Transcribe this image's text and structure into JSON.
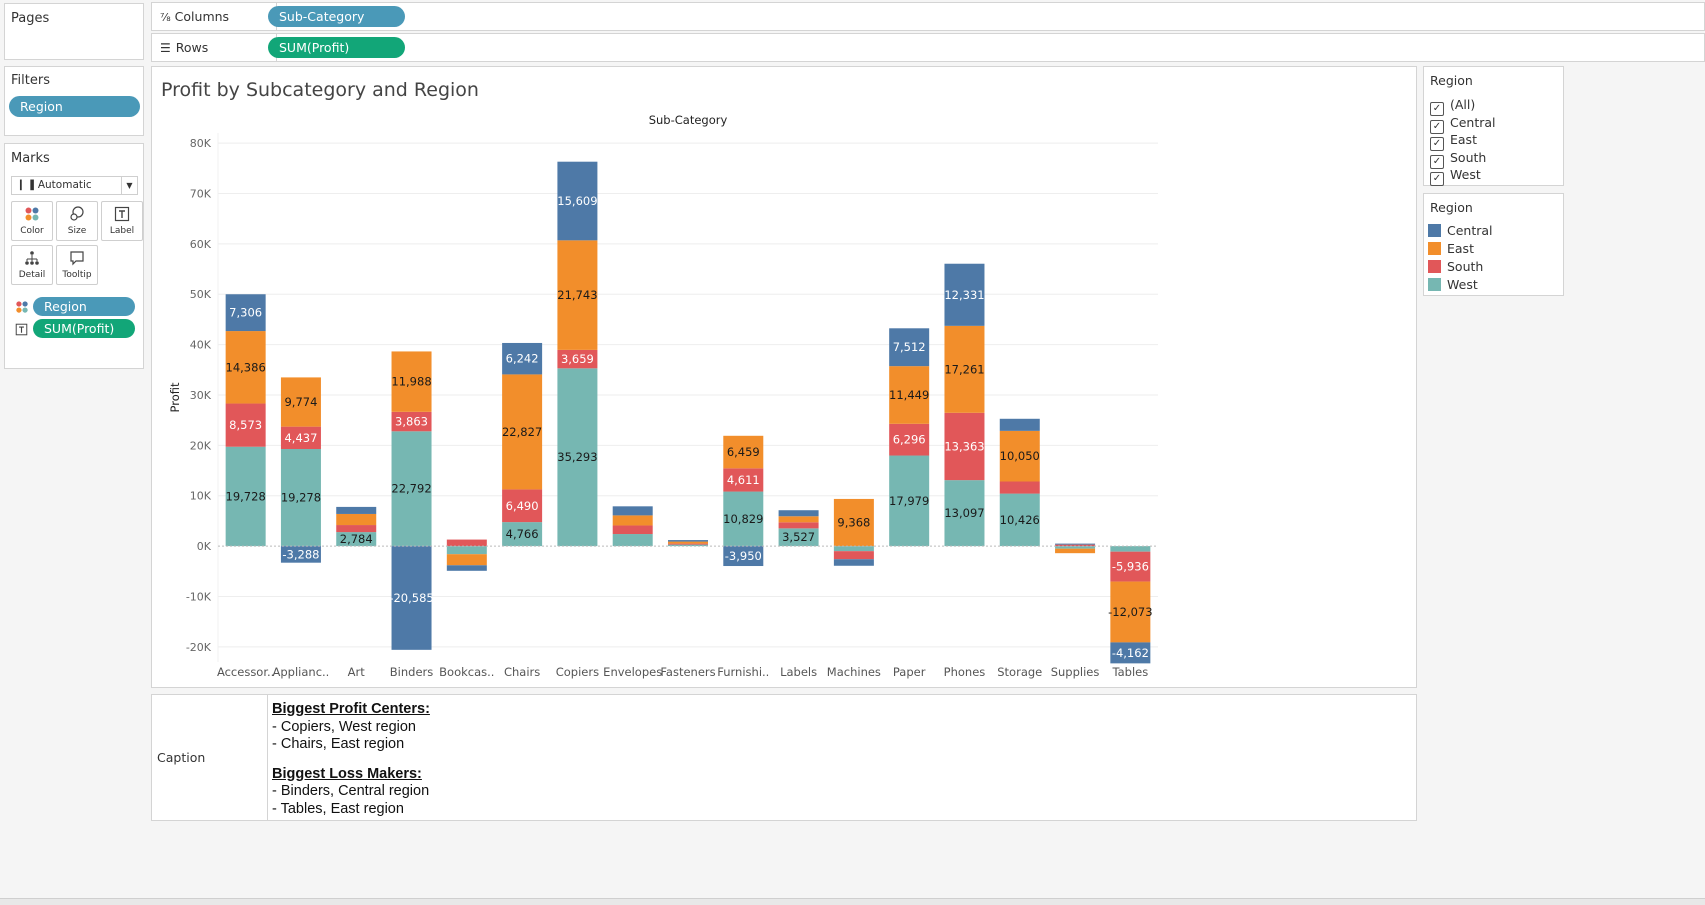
{
  "pages": {
    "title": "Pages"
  },
  "shelves": {
    "columns_label": "Columns",
    "columns_pill": "Sub-Category",
    "rows_label": "Rows",
    "rows_pill": "SUM(Profit)"
  },
  "filters": {
    "title": "Filters",
    "pill": "Region"
  },
  "marks": {
    "title": "Marks",
    "type": "Automatic",
    "buttons": {
      "color": "Color",
      "size": "Size",
      "label": "Label",
      "detail": "Detail",
      "tooltip": "Tooltip"
    },
    "color_pill": "Region",
    "label_pill": "SUM(Profit)"
  },
  "region_filter": {
    "title": "Region",
    "items": [
      "(All)",
      "Central",
      "East",
      "South",
      "West"
    ]
  },
  "legend": {
    "title": "Region",
    "items": [
      {
        "name": "Central",
        "color": "#4e79a7"
      },
      {
        "name": "East",
        "color": "#f28e2b"
      },
      {
        "name": "South",
        "color": "#e15759"
      },
      {
        "name": "West",
        "color": "#76b7b2"
      }
    ]
  },
  "caption": {
    "label": "Caption",
    "heading1": "Biggest Profit Centers:",
    "line1": "- Copiers, West region",
    "line2": "- Chairs, East region",
    "heading2": "Biggest Loss Makers:",
    "line3": "- Binders, Central region",
    "line4": "- Tables, East region"
  },
  "chart_data": {
    "type": "bar",
    "stacked": true,
    "title": "Profit by Subcategory and Region",
    "column_header": "Sub-Category",
    "ylabel": "Profit",
    "ylim": [
      -23000,
      82000
    ],
    "yticks": [
      -20000,
      -10000,
      0,
      10000,
      20000,
      30000,
      40000,
      50000,
      60000,
      70000,
      80000
    ],
    "ytick_labels": [
      "-20K",
      "-10K",
      "0K",
      "10K",
      "20K",
      "30K",
      "40K",
      "50K",
      "60K",
      "70K",
      "80K"
    ],
    "grid": true,
    "categories": [
      "Accessor..",
      "Applianc..",
      "Art",
      "Binders",
      "Bookcas..",
      "Chairs",
      "Copiers",
      "Envelopes",
      "Fasteners",
      "Furnishi..",
      "Labels",
      "Machines",
      "Paper",
      "Phones",
      "Storage",
      "Supplies",
      "Tables"
    ],
    "series": [
      {
        "name": "West",
        "color": "#76b7b2",
        "values": [
          19728,
          19278,
          2784,
          22792,
          -1600,
          4766,
          35293,
          2400,
          300,
          10829,
          3527,
          -1000,
          17979,
          13097,
          10426,
          -500,
          -1100
        ],
        "labels": [
          "19,728",
          "19,278",
          "2,784",
          "22,792",
          "",
          "4,766",
          "35,293",
          "",
          "",
          "10,829",
          "3,527",
          "",
          "17,979",
          "13,097",
          "10,426",
          "",
          ""
        ]
      },
      {
        "name": "South",
        "color": "#e15759",
        "values": [
          8573,
          4437,
          1400,
          3863,
          1300,
          6490,
          3659,
          1700,
          200,
          4611,
          1200,
          -1600,
          6296,
          13363,
          2400,
          300,
          -5936
        ],
        "labels": [
          "8,573",
          "4,437",
          "",
          "3,863",
          "",
          "6,490",
          "3,659",
          "",
          "",
          "4,611",
          "",
          "",
          "6,296",
          "13,363",
          "",
          "",
          "-5,936"
        ]
      },
      {
        "name": "East",
        "color": "#f28e2b",
        "values": [
          14386,
          9774,
          2200,
          11988,
          -2200,
          22827,
          21743,
          2000,
          400,
          6459,
          1200,
          9368,
          11449,
          17261,
          10050,
          -900,
          -12073
        ],
        "labels": [
          "14,386",
          "9,774",
          "",
          "11,988",
          "",
          "22,827",
          "21,743",
          "",
          "",
          "6,459",
          "",
          "9,368",
          "11,449",
          "17,261",
          "10,050",
          "",
          "-12,073"
        ]
      },
      {
        "name": "Central",
        "color": "#4e79a7",
        "values": [
          7306,
          -3288,
          1400,
          -20585,
          -1100,
          6242,
          15609,
          1800,
          300,
          -3950,
          1200,
          -1300,
          7512,
          12331,
          2400,
          200,
          -4162
        ],
        "labels": [
          "7,306",
          "-3,288",
          "",
          "-20,585",
          "",
          "6,242",
          "15,609",
          "",
          "",
          "-3,950",
          "",
          "",
          "7,512",
          "12,331",
          "",
          "",
          "-4,162"
        ]
      }
    ]
  }
}
